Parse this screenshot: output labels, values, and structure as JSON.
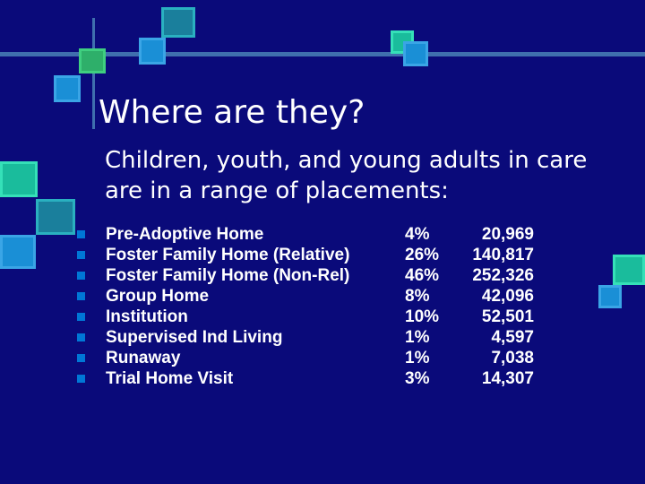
{
  "slide": {
    "title": "Where are they?",
    "intro_line1": "Children, youth, and young adults in care",
    "intro_line2": "are in a range of placements:"
  },
  "placements": [
    {
      "label": "Pre-Adoptive Home",
      "percent": "4%",
      "count": "20,969"
    },
    {
      "label": "Foster Family Home (Relative)",
      "percent": "26%",
      "count": "140,817"
    },
    {
      "label": "Foster Family Home (Non-Rel)",
      "percent": "46%",
      "count": "252,326"
    },
    {
      "label": "Group Home",
      "percent": "8%",
      "count": "42,096"
    },
    {
      "label": "Institution",
      "percent": "10%",
      "count": "52,501"
    },
    {
      "label": "Supervised Ind Living",
      "percent": "1%",
      "count": "4,597"
    },
    {
      "label": "Runaway",
      "percent": "1%",
      "count": "7,038"
    },
    {
      "label": "Trial Home Visit",
      "percent": "3%",
      "count": "14,307"
    }
  ],
  "colors": {
    "background": "#0a0a7a",
    "bullet": "#0077d6",
    "teal": "#1abc9c",
    "blue_square": "#1a8fd6"
  }
}
